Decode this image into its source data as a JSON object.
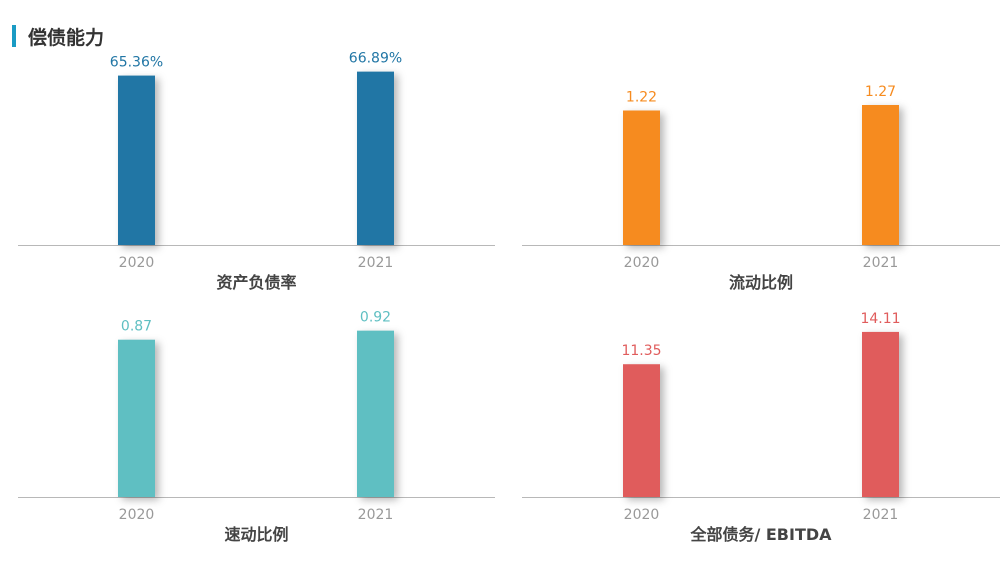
{
  "header": {
    "title": "偿债能力"
  },
  "chart_data": [
    {
      "type": "bar",
      "title": "资产负债率",
      "categories": [
        "2020",
        "2021"
      ],
      "values": [
        65.36,
        66.89
      ],
      "value_labels": [
        "65.36%",
        "66.89%"
      ],
      "color": "#2176a5",
      "label_color": "#2176a5",
      "ylim": [
        0,
        70.6
      ]
    },
    {
      "type": "bar",
      "title": "流动比例",
      "categories": [
        "2020",
        "2021"
      ],
      "values": [
        1.22,
        1.27
      ],
      "value_labels": [
        "1.22",
        "1.27"
      ],
      "color": "#f68b1f",
      "label_color": "#f68b1f",
      "ylim": [
        0,
        1.66
      ]
    },
    {
      "type": "bar",
      "title": "速动比例",
      "categories": [
        "2020",
        "2021"
      ],
      "values": [
        0.87,
        0.92
      ],
      "value_labels": [
        "0.87",
        "0.92"
      ],
      "color": "#5fbfc2",
      "label_color": "#5fbfc2",
      "ylim": [
        0,
        0.99
      ]
    },
    {
      "type": "bar",
      "title": "全部债务/ EBITDA",
      "categories": [
        "2020",
        "2021"
      ],
      "values": [
        11.35,
        14.11
      ],
      "value_labels": [
        "11.35",
        "14.11"
      ],
      "color": "#e05c5c",
      "label_color": "#e05c5c",
      "ylim": [
        0,
        15.3
      ]
    }
  ]
}
